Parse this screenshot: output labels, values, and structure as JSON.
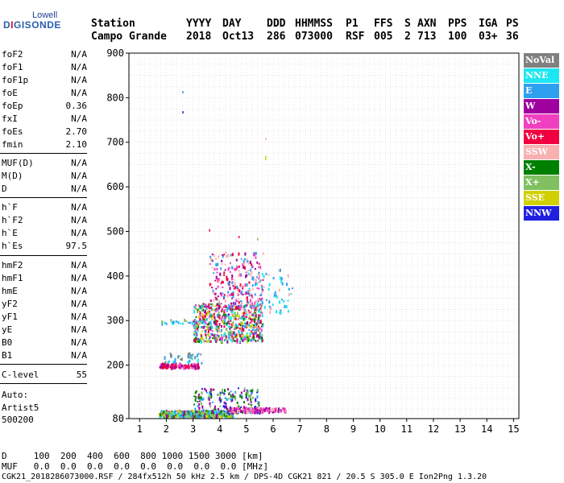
{
  "logo": {
    "lowell": "Lowell",
    "digisonde_a": "D",
    "digisonde_i": "I",
    "digisonde_rest": "GISONDE"
  },
  "header": {
    "row1": [
      "Station",
      "YYYY",
      "DAY",
      "DDD",
      "HHMMSS",
      "P1",
      "FFS",
      "S",
      "AXN",
      "PPS",
      "IGA",
      "PS"
    ],
    "row2": [
      "Campo Grande",
      "2018",
      "Oct13",
      "286",
      "073000",
      "RSF",
      "005",
      "2",
      "713",
      "100",
      "03+",
      "36"
    ]
  },
  "params": [
    {
      "name": "foF2",
      "value": "N/A"
    },
    {
      "name": "foF1",
      "value": "N/A"
    },
    {
      "name": "foF1p",
      "value": "N/A"
    },
    {
      "name": "foE",
      "value": "N/A"
    },
    {
      "name": "foEp",
      "value": "0.36"
    },
    {
      "name": "fxI",
      "value": "N/A"
    },
    {
      "name": "foEs",
      "value": "2.70"
    },
    {
      "name": "fmin",
      "value": "2.10"
    },
    {
      "name": "MUF(D)",
      "value": "N/A"
    },
    {
      "name": "M(D)",
      "value": "N/A"
    },
    {
      "name": "D",
      "value": "N/A"
    },
    {
      "name": "h`F",
      "value": "N/A"
    },
    {
      "name": "h`F2",
      "value": "N/A"
    },
    {
      "name": "h`E",
      "value": "N/A"
    },
    {
      "name": "h`Es",
      "value": "97.5"
    },
    {
      "name": "hmF2",
      "value": "N/A"
    },
    {
      "name": "hmF1",
      "value": "N/A"
    },
    {
      "name": "hmE",
      "value": "N/A"
    },
    {
      "name": "yF2",
      "value": "N/A"
    },
    {
      "name": "yF1",
      "value": "N/A"
    },
    {
      "name": "yE",
      "value": "N/A"
    },
    {
      "name": "B0",
      "value": "N/A"
    },
    {
      "name": "B1",
      "value": "N/A"
    },
    {
      "name": "C-level",
      "value": "55"
    }
  ],
  "auto": {
    "line1": "Auto:",
    "line2": "Artist5",
    "line3": "500200"
  },
  "footer": {
    "d_row": "D     100  200  400  600  800 1000 1500 3000 [km]",
    "muf_row": "MUF   0.0  0.0  0.0  0.0  0.0  0.0  0.0  0.0 [MHz]",
    "file_row": "CGK21_2018286073000.RSF / 284fx512h 50 kHz 2.5 km / DPS-4D CGK21 821 / 20.5 S 305.0 E Ion2Png 1.3.20"
  },
  "legend": [
    {
      "label": "NoVal",
      "color": "#808080"
    },
    {
      "label": "NNE",
      "color": "#1ee6f0"
    },
    {
      "label": "E",
      "color": "#2ea0f0"
    },
    {
      "label": "W",
      "color": "#a000a0"
    },
    {
      "label": "Vo-",
      "color": "#f040c0"
    },
    {
      "label": "Vo+",
      "color": "#f00040"
    },
    {
      "label": "SSW",
      "color": "#f8b0b0"
    },
    {
      "label": "X-",
      "color": "#008000"
    },
    {
      "label": "X+",
      "color": "#80c060"
    },
    {
      "label": "SSE",
      "color": "#d0d000"
    },
    {
      "label": "NNW",
      "color": "#2020e0"
    }
  ],
  "chart_data": {
    "type": "scatter",
    "x_ticks": [
      1,
      2,
      3,
      4,
      5,
      6,
      7,
      8,
      9,
      10,
      11,
      12,
      13,
      14,
      15
    ],
    "y_ticks": [
      80,
      200,
      300,
      400,
      500,
      600,
      700,
      800,
      900
    ],
    "xlim": [
      0.6,
      15.2
    ],
    "ylim": [
      80,
      900
    ],
    "grid": true,
    "legend_placement": "right",
    "clusters": [
      {
        "x": [
          1.7,
          4.5
        ],
        "y": [
          86,
          100
        ],
        "count": 520,
        "colors": [
          "#2ea0f0",
          "#008000",
          "#80c060",
          "#1ee6f0",
          "#a000a0",
          "#d0d000"
        ]
      },
      {
        "x": [
          3.0,
          5.5
        ],
        "y": [
          92,
          150
        ],
        "count": 180,
        "colors": [
          "#2020e0",
          "#2ea0f0",
          "#a000a0",
          "#80c060",
          "#008000"
        ]
      },
      {
        "x": [
          4.3,
          6.5
        ],
        "y": [
          97,
          106
        ],
        "count": 160,
        "colors": [
          "#a000a0",
          "#f040c0",
          "#f8b0b0"
        ]
      },
      {
        "x": [
          1.7,
          3.2
        ],
        "y": [
          196,
          206
        ],
        "count": 120,
        "colors": [
          "#f00040",
          "#a000a0",
          "#f040c0"
        ]
      },
      {
        "x": [
          1.9,
          3.4
        ],
        "y": [
          206,
          230
        ],
        "count": 40,
        "colors": [
          "#2ea0f0",
          "#1ee6f0",
          "#808080"
        ]
      },
      {
        "x": [
          1.8,
          3.5
        ],
        "y": [
          294,
          304
        ],
        "count": 35,
        "colors": [
          "#2ea0f0",
          "#80c060",
          "#1ee6f0"
        ]
      },
      {
        "x": [
          3.0,
          5.6
        ],
        "y": [
          255,
          340
        ],
        "count": 620,
        "colors": [
          "#f00040",
          "#2ea0f0",
          "#1ee6f0",
          "#d0d000",
          "#80c060",
          "#a000a0",
          "#f040c0",
          "#008000"
        ]
      },
      {
        "x": [
          3.6,
          5.6
        ],
        "y": [
          330,
          455
        ],
        "count": 260,
        "colors": [
          "#f00040",
          "#f040c0",
          "#a000a0",
          "#2ea0f0",
          "#f8b0b0"
        ]
      },
      {
        "x": [
          5.0,
          6.7
        ],
        "y": [
          320,
          420
        ],
        "count": 70,
        "colors": [
          "#2ea0f0",
          "#1ee6f0",
          "#f8b0b0"
        ]
      }
    ],
    "outliers": [
      {
        "x": 2.6,
        "y": 815,
        "color": "#2ea0f0"
      },
      {
        "x": 2.6,
        "y": 770,
        "color": "#2020e0"
      },
      {
        "x": 5.7,
        "y": 710,
        "color": "#f8b0b0"
      },
      {
        "x": 5.7,
        "y": 670,
        "color": "#d0d000"
      },
      {
        "x": 5.7,
        "y": 665,
        "color": "#d0d000"
      },
      {
        "x": 3.6,
        "y": 505,
        "color": "#f00040"
      },
      {
        "x": 4.7,
        "y": 490,
        "color": "#f00040"
      },
      {
        "x": 5.4,
        "y": 485,
        "color": "#80c060"
      }
    ]
  }
}
